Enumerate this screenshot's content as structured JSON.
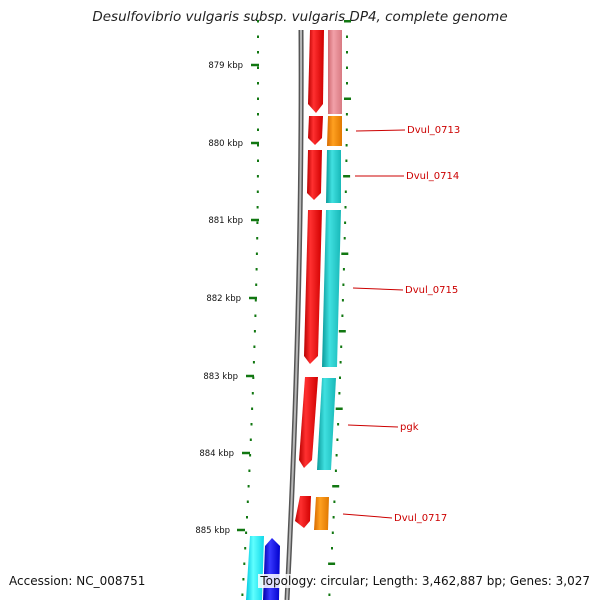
{
  "title": "Desulfovibrio vulgaris subsp. vulgaris DP4, complete genome",
  "footer": {
    "accession": "Accession: NC_008751",
    "topology": "Topology: circular; Length: 3,462,887 bp; Genes: 3,027"
  },
  "scale_labels": [
    "879 kbp",
    "880 kbp",
    "881 kbp",
    "882 kbp",
    "883 kbp",
    "884 kbp",
    "885 kbp"
  ],
  "gene_labels": [
    "Dvul_0713",
    "Dvul_0714",
    "Dvul_0715",
    "pgk",
    "Dvul_0717"
  ],
  "colors": {
    "forward_cds": "#ee1111",
    "faded_cds": "#e8848c",
    "orange_feature": "#ff8c00",
    "cyan_feature": "#22cccc",
    "blue_cds": "#1111ee",
    "backbone": "#888888",
    "tick_green": "#117711",
    "label_red": "#cc0000"
  }
}
